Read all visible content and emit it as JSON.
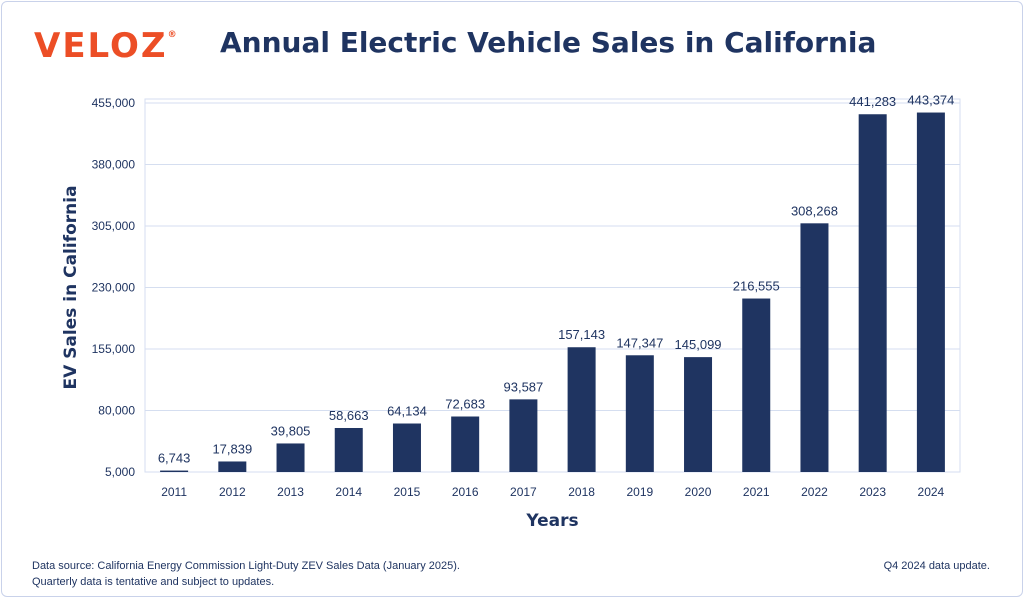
{
  "header": {
    "logo_text": "VELOZ",
    "logo_mark": "®",
    "title": "Annual Electric Vehicle Sales in California"
  },
  "footer": {
    "source_line1": "Data source: California Energy Commission Light-Duty ZEV Sales Data (January 2025).",
    "source_line2": "Quarterly data is tentative and subject to updates.",
    "update_note": "Q4 2024 data update."
  },
  "colors": {
    "bar": "#1f3461",
    "text": "#1f3461",
    "grid": "#d5def0",
    "brand": "#ec4e26"
  },
  "chart_data": {
    "type": "bar",
    "title": "Annual Electric Vehicle Sales in California",
    "xlabel": "Years",
    "ylabel": "EV Sales in California",
    "categories": [
      "2011",
      "2012",
      "2013",
      "2014",
      "2015",
      "2016",
      "2017",
      "2018",
      "2019",
      "2020",
      "2021",
      "2022",
      "2023",
      "2024"
    ],
    "values": [
      6743,
      17839,
      39805,
      58663,
      64134,
      72683,
      93587,
      157143,
      147347,
      145099,
      216555,
      308268,
      441283,
      443374
    ],
    "value_labels": [
      "6,743",
      "17,839",
      "39,805",
      "58,663",
      "64,134",
      "72,683",
      "93,587",
      "157,143",
      "147,347",
      "145,099",
      "216,555",
      "308,268",
      "441,283",
      "443,374"
    ],
    "ylim": [
      5000,
      455000
    ],
    "yticks": [
      5000,
      80000,
      155000,
      230000,
      305000,
      380000,
      455000
    ],
    "ytick_labels": [
      "5,000",
      "80,000",
      "155,000",
      "230,000",
      "305,000",
      "380,000",
      "455,000"
    ],
    "grid": true
  }
}
